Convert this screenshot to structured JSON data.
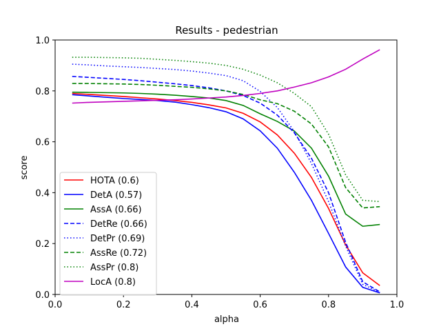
{
  "chart_data": {
    "type": "line",
    "title": "Results - pedestrian",
    "xlabel": "alpha",
    "ylabel": "score",
    "xlim": [
      0.0,
      1.0
    ],
    "ylim": [
      0.0,
      1.0
    ],
    "xticks": [
      "0.0",
      "0.2",
      "0.4",
      "0.6",
      "0.8",
      "1.0"
    ],
    "yticks": [
      "0.0",
      "0.2",
      "0.4",
      "0.6",
      "0.8",
      "1.0"
    ],
    "grid": false,
    "legend_position": "lower-left",
    "x": [
      0.05,
      0.1,
      0.15,
      0.2,
      0.25,
      0.3,
      0.35,
      0.4,
      0.45,
      0.5,
      0.55,
      0.6,
      0.65,
      0.7,
      0.75,
      0.8,
      0.85,
      0.9,
      0.95
    ],
    "series": [
      {
        "name": "HOTA (0.6)",
        "color": "#ff0000",
        "dash": "solid",
        "values": [
          0.79,
          0.786,
          0.782,
          0.778,
          0.773,
          0.768,
          0.762,
          0.755,
          0.745,
          0.733,
          0.712,
          0.678,
          0.627,
          0.555,
          0.46,
          0.338,
          0.195,
          0.085,
          0.035
        ]
      },
      {
        "name": "DetA (0.57)",
        "color": "#0000ff",
        "dash": "solid",
        "values": [
          0.785,
          0.78,
          0.775,
          0.77,
          0.766,
          0.762,
          0.756,
          0.746,
          0.734,
          0.718,
          0.69,
          0.643,
          0.575,
          0.48,
          0.37,
          0.24,
          0.108,
          0.028,
          0.006
        ]
      },
      {
        "name": "AssA (0.66)",
        "color": "#008000",
        "dash": "solid",
        "values": [
          0.795,
          0.794,
          0.793,
          0.792,
          0.79,
          0.787,
          0.783,
          0.778,
          0.772,
          0.762,
          0.743,
          0.71,
          0.68,
          0.642,
          0.575,
          0.465,
          0.316,
          0.268,
          0.275
        ]
      },
      {
        "name": "DetRe (0.66)",
        "color": "#0000ff",
        "dash": "dashed",
        "values": [
          0.857,
          0.853,
          0.849,
          0.845,
          0.84,
          0.834,
          0.828,
          0.821,
          0.812,
          0.8,
          0.782,
          0.752,
          0.705,
          0.635,
          0.535,
          0.4,
          0.205,
          0.05,
          0.01
        ]
      },
      {
        "name": "DetPr (0.69)",
        "color": "#0000ff",
        "dash": "dotted",
        "values": [
          0.905,
          0.902,
          0.898,
          0.895,
          0.892,
          0.888,
          0.884,
          0.878,
          0.87,
          0.86,
          0.84,
          0.798,
          0.735,
          0.64,
          0.515,
          0.365,
          0.19,
          0.04,
          0.008
        ]
      },
      {
        "name": "AssRe (0.72)",
        "color": "#008000",
        "dash": "dashed",
        "values": [
          0.829,
          0.829,
          0.828,
          0.827,
          0.825,
          0.822,
          0.818,
          0.814,
          0.808,
          0.8,
          0.786,
          0.765,
          0.75,
          0.72,
          0.67,
          0.58,
          0.42,
          0.34,
          0.345
        ]
      },
      {
        "name": "AssPr (0.8)",
        "color": "#008000",
        "dash": "dotted",
        "values": [
          0.932,
          0.932,
          0.931,
          0.93,
          0.928,
          0.924,
          0.92,
          0.915,
          0.909,
          0.9,
          0.885,
          0.862,
          0.832,
          0.79,
          0.738,
          0.63,
          0.47,
          0.37,
          0.365
        ]
      },
      {
        "name": "LocA (0.8)",
        "color": "#bf00bf",
        "dash": "solid",
        "values": [
          0.752,
          0.755,
          0.757,
          0.759,
          0.761,
          0.763,
          0.765,
          0.768,
          0.772,
          0.776,
          0.782,
          0.79,
          0.8,
          0.815,
          0.832,
          0.855,
          0.885,
          0.925,
          0.962
        ]
      }
    ]
  }
}
